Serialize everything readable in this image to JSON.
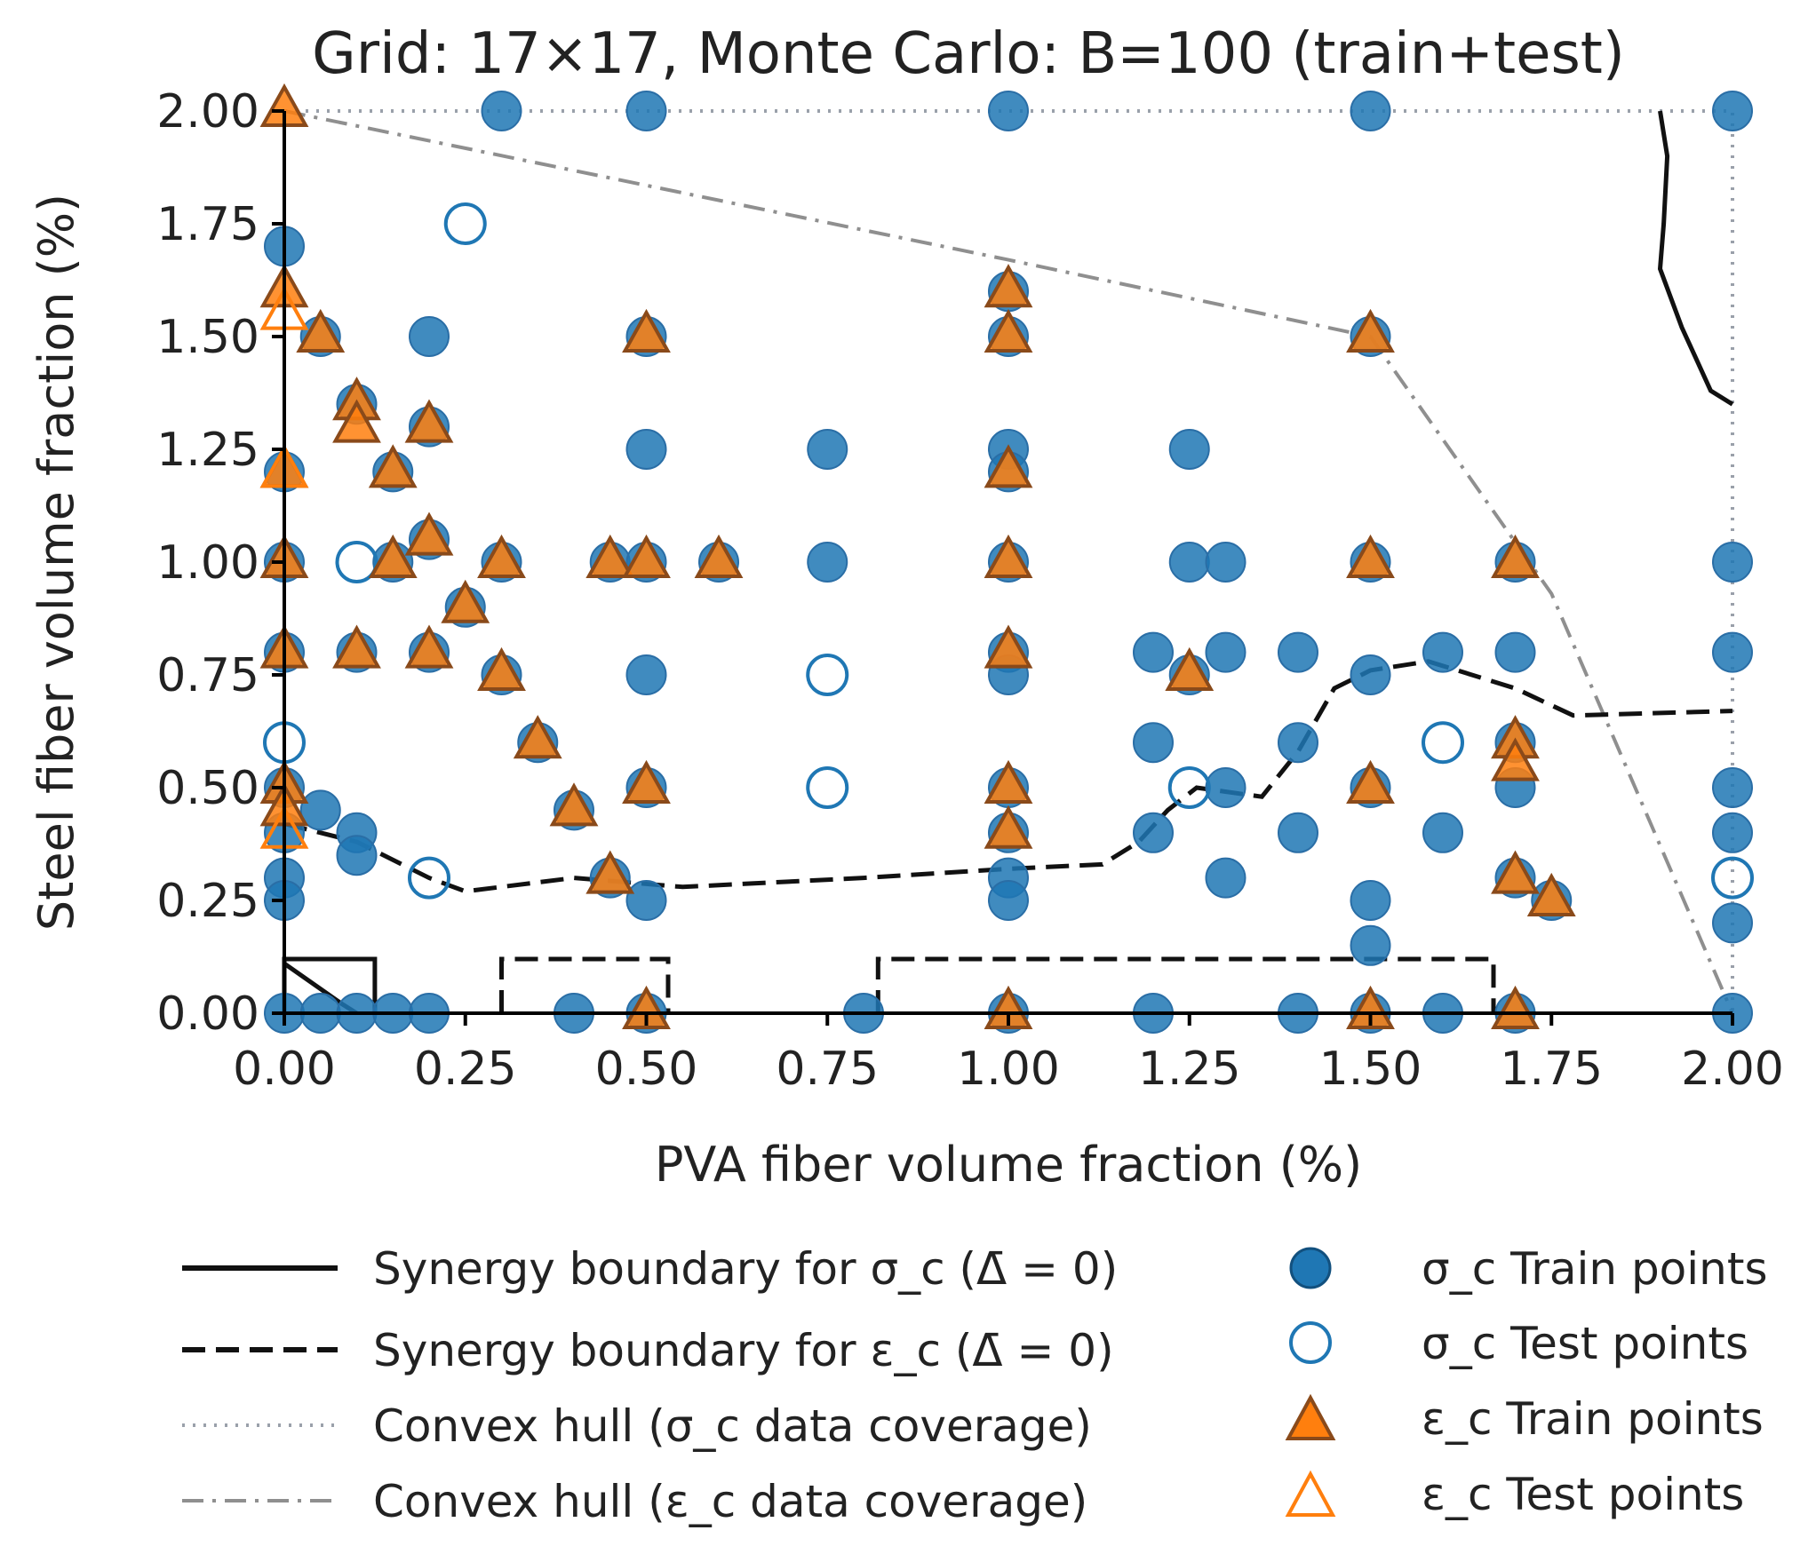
{
  "chart_data": {
    "type": "scatter",
    "title": "Grid: 17×17, Monte Carlo: B=100 (train+test)",
    "xlabel": "PVA fiber volume fraction (%)",
    "ylabel": "Steel fiber volume fraction (%)",
    "xlim": [
      0,
      2
    ],
    "ylim": [
      0,
      2
    ],
    "xticks": [
      "0.00",
      "0.25",
      "0.50",
      "0.75",
      "1.00",
      "1.25",
      "1.50",
      "1.75",
      "2.00"
    ],
    "yticks": [
      "0.00",
      "0.25",
      "0.50",
      "0.75",
      "1.00",
      "1.25",
      "1.50",
      "1.75",
      "2.00"
    ],
    "colors": {
      "sigma": "#1f77b4",
      "epsilon": "#ff7f0e",
      "line": "#111111",
      "hull_sigma": "#9aa0aa",
      "hull_epsilon": "#8f8f8f"
    },
    "sigma_train": [
      [
        0.3,
        2.0
      ],
      [
        0.5,
        2.0
      ],
      [
        1.0,
        2.0
      ],
      [
        1.5,
        2.0
      ],
      [
        2.0,
        2.0
      ],
      [
        0.0,
        1.7
      ],
      [
        0.05,
        1.5
      ],
      [
        0.2,
        1.5
      ],
      [
        0.5,
        1.5
      ],
      [
        1.0,
        1.6
      ],
      [
        1.0,
        1.5
      ],
      [
        1.5,
        1.5
      ],
      [
        0.1,
        1.35
      ],
      [
        0.2,
        1.3
      ],
      [
        0.5,
        1.25
      ],
      [
        0.75,
        1.25
      ],
      [
        1.0,
        1.25
      ],
      [
        1.25,
        1.25
      ],
      [
        0.0,
        1.2
      ],
      [
        0.15,
        1.2
      ],
      [
        1.0,
        1.2
      ],
      [
        0.0,
        1.0
      ],
      [
        0.15,
        1.0
      ],
      [
        0.2,
        1.05
      ],
      [
        0.3,
        1.0
      ],
      [
        0.45,
        1.0
      ],
      [
        0.5,
        1.0
      ],
      [
        0.6,
        1.0
      ],
      [
        0.75,
        1.0
      ],
      [
        1.0,
        1.0
      ],
      [
        1.25,
        1.0
      ],
      [
        1.3,
        1.0
      ],
      [
        1.5,
        1.0
      ],
      [
        1.7,
        1.0
      ],
      [
        2.0,
        1.0
      ],
      [
        0.25,
        0.9
      ],
      [
        0.0,
        0.8
      ],
      [
        0.1,
        0.8
      ],
      [
        0.2,
        0.8
      ],
      [
        1.0,
        0.8
      ],
      [
        1.2,
        0.8
      ],
      [
        1.3,
        0.8
      ],
      [
        1.4,
        0.8
      ],
      [
        1.6,
        0.8
      ],
      [
        1.7,
        0.8
      ],
      [
        2.0,
        0.8
      ],
      [
        0.3,
        0.75
      ],
      [
        0.5,
        0.75
      ],
      [
        1.0,
        0.75
      ],
      [
        1.25,
        0.75
      ],
      [
        1.5,
        0.75
      ],
      [
        0.35,
        0.6
      ],
      [
        1.2,
        0.6
      ],
      [
        1.4,
        0.6
      ],
      [
        1.7,
        0.6
      ],
      [
        0.0,
        0.5
      ],
      [
        0.5,
        0.5
      ],
      [
        1.0,
        0.5
      ],
      [
        1.3,
        0.5
      ],
      [
        1.5,
        0.5
      ],
      [
        1.7,
        0.5
      ],
      [
        2.0,
        0.5
      ],
      [
        0.05,
        0.45
      ],
      [
        0.4,
        0.45
      ],
      [
        0.0,
        0.4
      ],
      [
        0.1,
        0.4
      ],
      [
        1.0,
        0.4
      ],
      [
        1.2,
        0.4
      ],
      [
        1.4,
        0.4
      ],
      [
        1.6,
        0.4
      ],
      [
        2.0,
        0.4
      ],
      [
        0.1,
        0.35
      ],
      [
        0.0,
        0.3
      ],
      [
        0.45,
        0.3
      ],
      [
        1.0,
        0.3
      ],
      [
        1.3,
        0.3
      ],
      [
        1.7,
        0.3
      ],
      [
        0.0,
        0.25
      ],
      [
        0.5,
        0.25
      ],
      [
        1.0,
        0.25
      ],
      [
        1.5,
        0.25
      ],
      [
        1.75,
        0.25
      ],
      [
        1.5,
        0.15
      ],
      [
        2.0,
        0.2
      ],
      [
        0.0,
        0.0
      ],
      [
        0.05,
        0.0
      ],
      [
        0.1,
        0.0
      ],
      [
        0.15,
        0.0
      ],
      [
        0.2,
        0.0
      ],
      [
        0.4,
        0.0
      ],
      [
        0.5,
        0.0
      ],
      [
        0.8,
        0.0
      ],
      [
        1.0,
        0.0
      ],
      [
        1.2,
        0.0
      ],
      [
        1.4,
        0.0
      ],
      [
        1.5,
        0.0
      ],
      [
        1.6,
        0.0
      ],
      [
        1.7,
        0.0
      ],
      [
        2.0,
        0.0
      ]
    ],
    "sigma_test": [
      [
        0.25,
        1.75
      ],
      [
        0.1,
        1.0
      ],
      [
        0.0,
        0.6
      ],
      [
        0.2,
        0.3
      ],
      [
        0.75,
        0.75
      ],
      [
        0.75,
        0.5
      ],
      [
        1.25,
        0.5
      ],
      [
        1.6,
        0.6
      ],
      [
        2.0,
        0.3
      ]
    ],
    "epsilon_train": [
      [
        0.0,
        2.0
      ],
      [
        0.0,
        1.6
      ],
      [
        0.05,
        1.5
      ],
      [
        0.5,
        1.5
      ],
      [
        1.0,
        1.6
      ],
      [
        1.0,
        1.5
      ],
      [
        1.5,
        1.5
      ],
      [
        0.1,
        1.35
      ],
      [
        0.1,
        1.3
      ],
      [
        0.2,
        1.3
      ],
      [
        0.15,
        1.2
      ],
      [
        0.0,
        1.2
      ],
      [
        1.0,
        1.2
      ],
      [
        0.0,
        1.0
      ],
      [
        0.15,
        1.0
      ],
      [
        0.2,
        1.05
      ],
      [
        0.3,
        1.0
      ],
      [
        0.45,
        1.0
      ],
      [
        0.5,
        1.0
      ],
      [
        0.6,
        1.0
      ],
      [
        1.0,
        1.0
      ],
      [
        1.5,
        1.0
      ],
      [
        1.7,
        1.0
      ],
      [
        0.25,
        0.9
      ],
      [
        0.0,
        0.8
      ],
      [
        0.1,
        0.8
      ],
      [
        0.2,
        0.8
      ],
      [
        1.0,
        0.8
      ],
      [
        0.3,
        0.75
      ],
      [
        1.25,
        0.75
      ],
      [
        0.35,
        0.6
      ],
      [
        1.7,
        0.6
      ],
      [
        1.7,
        0.55
      ],
      [
        0.0,
        0.5
      ],
      [
        0.5,
        0.5
      ],
      [
        1.0,
        0.5
      ],
      [
        1.5,
        0.5
      ],
      [
        0.0,
        0.45
      ],
      [
        0.4,
        0.45
      ],
      [
        1.0,
        0.4
      ],
      [
        0.45,
        0.3
      ],
      [
        1.7,
        0.3
      ],
      [
        1.75,
        0.25
      ],
      [
        0.5,
        0.0
      ],
      [
        1.0,
        0.0
      ],
      [
        1.5,
        0.0
      ],
      [
        1.7,
        0.0
      ]
    ],
    "epsilon_test": [
      [
        0.0,
        1.55
      ],
      [
        0.0,
        1.2
      ],
      [
        0.0,
        0.4
      ]
    ],
    "sigma_boundary": [
      [
        1.9,
        2.0
      ],
      [
        1.91,
        1.9
      ],
      [
        1.905,
        1.75
      ],
      [
        1.9,
        1.65
      ],
      [
        1.93,
        1.52
      ],
      [
        1.95,
        1.45
      ],
      [
        1.97,
        1.38
      ],
      [
        2.0,
        1.35
      ]
    ],
    "sigma_boundary_low": [
      [
        0.0,
        0.11
      ],
      [
        0.08,
        0.02
      ],
      [
        0.1,
        0.0
      ]
    ],
    "sigma_box": [
      [
        0.0,
        0.0
      ],
      [
        0.0,
        0.12
      ],
      [
        0.125,
        0.12
      ],
      [
        0.125,
        0.0
      ]
    ],
    "epsilon_boundary": [
      [
        0.0,
        0.42
      ],
      [
        0.1,
        0.38
      ],
      [
        0.2,
        0.3
      ],
      [
        0.25,
        0.27
      ],
      [
        0.4,
        0.3
      ],
      [
        0.55,
        0.28
      ],
      [
        0.8,
        0.3
      ],
      [
        1.0,
        0.32
      ],
      [
        1.13,
        0.33
      ],
      [
        1.18,
        0.38
      ],
      [
        1.22,
        0.45
      ],
      [
        1.26,
        0.5
      ],
      [
        1.35,
        0.48
      ],
      [
        1.4,
        0.58
      ],
      [
        1.45,
        0.72
      ],
      [
        1.5,
        0.76
      ],
      [
        1.58,
        0.78
      ],
      [
        1.62,
        0.76
      ],
      [
        1.7,
        0.72
      ],
      [
        1.78,
        0.66
      ],
      [
        2.0,
        0.67
      ]
    ],
    "epsilon_boxes": [
      [
        [
          0.3,
          0.0
        ],
        [
          0.3,
          0.12
        ],
        [
          0.53,
          0.12
        ],
        [
          0.53,
          0.0
        ]
      ],
      [
        [
          0.82,
          0.0
        ],
        [
          0.82,
          0.12
        ],
        [
          1.67,
          0.12
        ],
        [
          1.67,
          0.0
        ]
      ]
    ],
    "hull_sigma": [
      [
        0.0,
        2.0
      ],
      [
        2.0,
        2.0
      ],
      [
        2.0,
        0.0
      ],
      [
        0.0,
        0.0
      ],
      [
        0.0,
        2.0
      ]
    ],
    "hull_epsilon": [
      [
        0.0,
        2.0
      ],
      [
        1.0,
        1.67
      ],
      [
        1.5,
        1.5
      ],
      [
        1.75,
        0.93
      ],
      [
        2.0,
        0.0
      ]
    ],
    "legend": {
      "items": [
        {
          "label": "Synergy boundary for σ_c (Δ̄ = 0)",
          "style": "solid"
        },
        {
          "label": "Synergy boundary for ε_c (Δ̄ = 0)",
          "style": "dashed"
        },
        {
          "label": "Convex hull (σ_c data coverage)",
          "style": "dotted"
        },
        {
          "label": "Convex hull (ε_c data coverage)",
          "style": "dashdot"
        },
        {
          "label": "σ_c Train points",
          "marker": "filled-circle"
        },
        {
          "label": "σ_c Test points",
          "marker": "open-circle"
        },
        {
          "label": "ε_c Train points",
          "marker": "filled-triangle"
        },
        {
          "label": "ε_c Test points",
          "marker": "open-triangle"
        }
      ]
    }
  }
}
